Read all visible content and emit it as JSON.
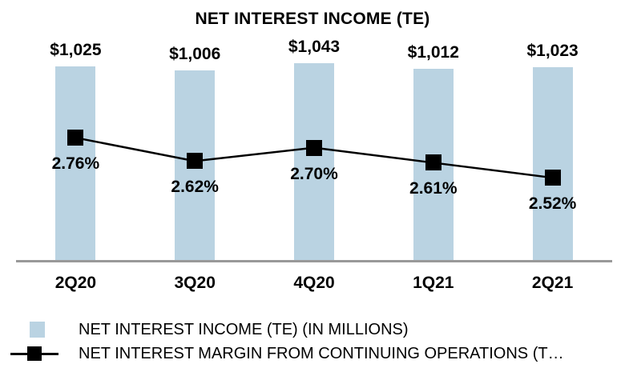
{
  "chart_data": {
    "type": "bar",
    "combo": "bar+line",
    "title": "NET INTEREST INCOME (TE)",
    "categories": [
      "2Q20",
      "3Q20",
      "4Q20",
      "1Q21",
      "2Q21"
    ],
    "series": [
      {
        "name": "NET INTEREST INCOME (TE) (IN MILLIONS)",
        "type": "bar",
        "values": [
          1025,
          1006,
          1043,
          1012,
          1023
        ],
        "labels": [
          "$1,025",
          "$1,006",
          "$1,043",
          "$1,012",
          "$1,023"
        ],
        "color": "#BAD3E2",
        "baseline": 0
      },
      {
        "name": "NET INTEREST MARGIN FROM CONTINUING OPERATIONS (T…",
        "type": "line",
        "values": [
          2.76,
          2.62,
          2.7,
          2.61,
          2.52
        ],
        "labels": [
          "2.76%",
          "2.62%",
          "2.70%",
          "2.61%",
          "2.52%"
        ],
        "color": "#000000",
        "marker": "square"
      }
    ],
    "xlabel": "",
    "ylabel": "",
    "grid": false,
    "legend_position": "bottom-left",
    "axis_line_color": "#999999"
  },
  "legend": {
    "items": [
      {
        "label": "NET INTEREST INCOME (TE) (IN MILLIONS)",
        "swatch": "light-blue-square"
      },
      {
        "label": "NET INTEREST MARGIN FROM CONTINUING OPERATIONS (T…",
        "swatch": "black-square-on-line"
      }
    ]
  },
  "colors": {
    "bar": "#BAD3E2",
    "line": "#000000",
    "marker": "#000000",
    "axis": "#999999",
    "text": "#000000",
    "background": "#FFFFFF"
  }
}
